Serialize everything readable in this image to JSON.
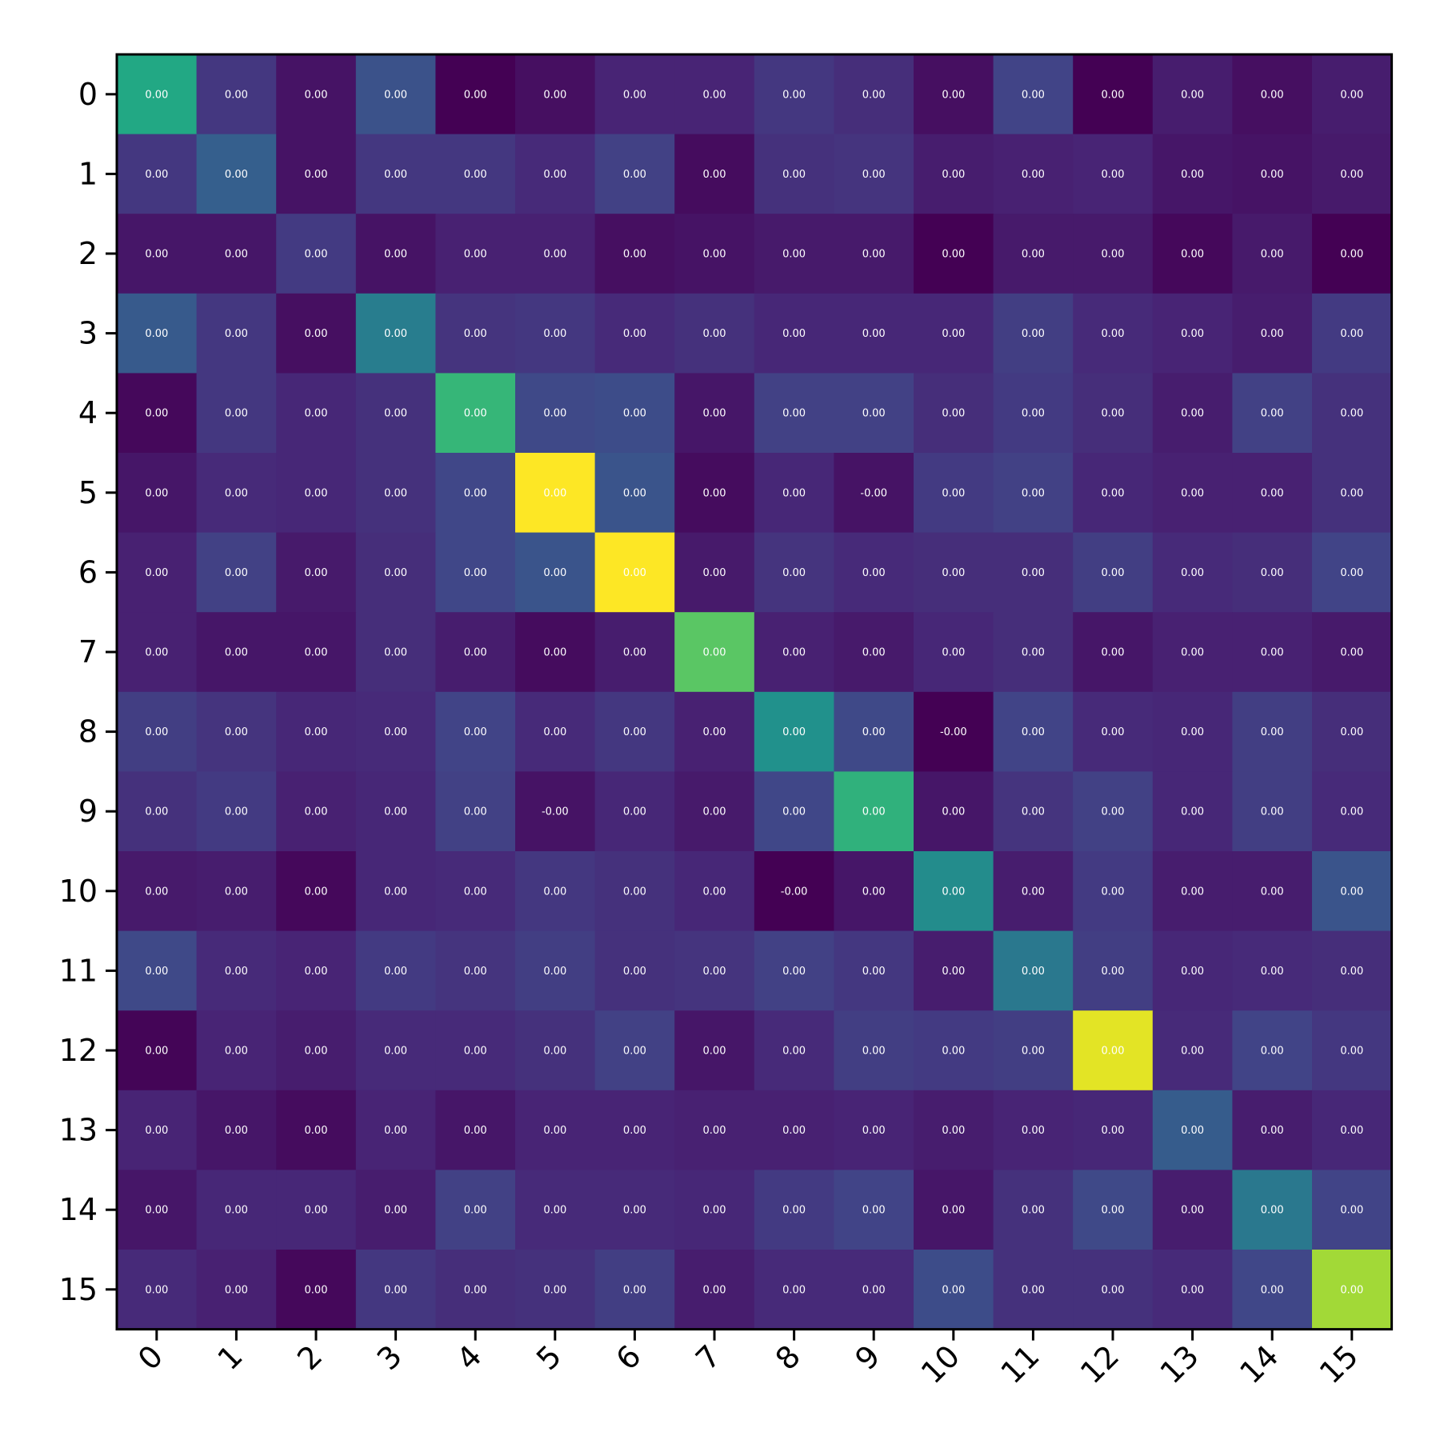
{
  "chart_data": {
    "type": "heatmap",
    "colormap": "viridis",
    "rows": [
      "0",
      "1",
      "2",
      "3",
      "4",
      "5",
      "6",
      "7",
      "8",
      "9",
      "10",
      "11",
      "12",
      "13",
      "14",
      "15"
    ],
    "columns": [
      "0",
      "1",
      "2",
      "3",
      "4",
      "5",
      "6",
      "7",
      "8",
      "9",
      "10",
      "11",
      "12",
      "13",
      "14",
      "15"
    ],
    "x_tick_rotation": 45,
    "cell_labels": [
      [
        "0.00",
        "0.00",
        "0.00",
        "0.00",
        "0.00",
        "0.00",
        "0.00",
        "0.00",
        "0.00",
        "0.00",
        "0.00",
        "0.00",
        "0.00",
        "0.00",
        "0.00",
        "0.00"
      ],
      [
        "0.00",
        "0.00",
        "0.00",
        "0.00",
        "0.00",
        "0.00",
        "0.00",
        "0.00",
        "0.00",
        "0.00",
        "0.00",
        "0.00",
        "0.00",
        "0.00",
        "0.00",
        "0.00"
      ],
      [
        "0.00",
        "0.00",
        "0.00",
        "0.00",
        "0.00",
        "0.00",
        "0.00",
        "0.00",
        "0.00",
        "0.00",
        "0.00",
        "0.00",
        "0.00",
        "0.00",
        "0.00",
        "0.00"
      ],
      [
        "0.00",
        "0.00",
        "0.00",
        "0.00",
        "0.00",
        "0.00",
        "0.00",
        "0.00",
        "0.00",
        "0.00",
        "0.00",
        "0.00",
        "0.00",
        "0.00",
        "0.00",
        "0.00"
      ],
      [
        "0.00",
        "0.00",
        "0.00",
        "0.00",
        "0.00",
        "0.00",
        "0.00",
        "0.00",
        "0.00",
        "0.00",
        "0.00",
        "0.00",
        "0.00",
        "0.00",
        "0.00",
        "0.00"
      ],
      [
        "0.00",
        "0.00",
        "0.00",
        "0.00",
        "0.00",
        "0.00",
        "0.00",
        "0.00",
        "0.00",
        "-0.00",
        "0.00",
        "0.00",
        "0.00",
        "0.00",
        "0.00",
        "0.00"
      ],
      [
        "0.00",
        "0.00",
        "0.00",
        "0.00",
        "0.00",
        "0.00",
        "0.00",
        "0.00",
        "0.00",
        "0.00",
        "0.00",
        "0.00",
        "0.00",
        "0.00",
        "0.00",
        "0.00"
      ],
      [
        "0.00",
        "0.00",
        "0.00",
        "0.00",
        "0.00",
        "0.00",
        "0.00",
        "0.00",
        "0.00",
        "0.00",
        "0.00",
        "0.00",
        "0.00",
        "0.00",
        "0.00",
        "0.00"
      ],
      [
        "0.00",
        "0.00",
        "0.00",
        "0.00",
        "0.00",
        "0.00",
        "0.00",
        "0.00",
        "0.00",
        "0.00",
        "-0.00",
        "0.00",
        "0.00",
        "0.00",
        "0.00",
        "0.00"
      ],
      [
        "0.00",
        "0.00",
        "0.00",
        "0.00",
        "0.00",
        "-0.00",
        "0.00",
        "0.00",
        "0.00",
        "0.00",
        "0.00",
        "0.00",
        "0.00",
        "0.00",
        "0.00",
        "0.00"
      ],
      [
        "0.00",
        "0.00",
        "0.00",
        "0.00",
        "0.00",
        "0.00",
        "0.00",
        "0.00",
        "-0.00",
        "0.00",
        "0.00",
        "0.00",
        "0.00",
        "0.00",
        "0.00",
        "0.00"
      ],
      [
        "0.00",
        "0.00",
        "0.00",
        "0.00",
        "0.00",
        "0.00",
        "0.00",
        "0.00",
        "0.00",
        "0.00",
        "0.00",
        "0.00",
        "0.00",
        "0.00",
        "0.00",
        "0.00"
      ],
      [
        "0.00",
        "0.00",
        "0.00",
        "0.00",
        "0.00",
        "0.00",
        "0.00",
        "0.00",
        "0.00",
        "0.00",
        "0.00",
        "0.00",
        "0.00",
        "0.00",
        "0.00",
        "0.00"
      ],
      [
        "0.00",
        "0.00",
        "0.00",
        "0.00",
        "0.00",
        "0.00",
        "0.00",
        "0.00",
        "0.00",
        "0.00",
        "0.00",
        "0.00",
        "0.00",
        "0.00",
        "0.00",
        "0.00"
      ],
      [
        "0.00",
        "0.00",
        "0.00",
        "0.00",
        "0.00",
        "0.00",
        "0.00",
        "0.00",
        "0.00",
        "0.00",
        "0.00",
        "0.00",
        "0.00",
        "0.00",
        "0.00",
        "0.00"
      ],
      [
        "0.00",
        "0.00",
        "0.00",
        "0.00",
        "0.00",
        "0.00",
        "0.00",
        "0.00",
        "0.00",
        "0.00",
        "0.00",
        "0.00",
        "0.00",
        "0.00",
        "0.00",
        "0.00"
      ]
    ],
    "color_levels": [
      [
        0.6,
        0.16,
        0.05,
        0.25,
        0.0,
        0.04,
        0.1,
        0.1,
        0.16,
        0.13,
        0.04,
        0.2,
        0.0,
        0.08,
        0.04,
        0.08
      ],
      [
        0.16,
        0.3,
        0.05,
        0.16,
        0.16,
        0.12,
        0.19,
        0.03,
        0.14,
        0.15,
        0.08,
        0.09,
        0.1,
        0.06,
        0.05,
        0.07
      ],
      [
        0.06,
        0.06,
        0.17,
        0.05,
        0.09,
        0.09,
        0.04,
        0.05,
        0.07,
        0.07,
        0.0,
        0.07,
        0.07,
        0.02,
        0.07,
        0.0
      ],
      [
        0.28,
        0.16,
        0.04,
        0.42,
        0.15,
        0.16,
        0.12,
        0.14,
        0.11,
        0.11,
        0.11,
        0.18,
        0.12,
        0.1,
        0.08,
        0.17
      ],
      [
        0.02,
        0.16,
        0.11,
        0.14,
        0.66,
        0.22,
        0.23,
        0.06,
        0.19,
        0.19,
        0.13,
        0.17,
        0.13,
        0.08,
        0.19,
        0.14
      ],
      [
        0.06,
        0.12,
        0.11,
        0.14,
        0.21,
        1.0,
        0.26,
        0.03,
        0.11,
        0.05,
        0.17,
        0.19,
        0.11,
        0.09,
        0.09,
        0.14
      ],
      [
        0.09,
        0.19,
        0.07,
        0.13,
        0.21,
        0.26,
        1.0,
        0.07,
        0.15,
        0.12,
        0.13,
        0.13,
        0.18,
        0.12,
        0.13,
        0.2
      ],
      [
        0.09,
        0.06,
        0.06,
        0.13,
        0.08,
        0.03,
        0.08,
        0.74,
        0.09,
        0.07,
        0.11,
        0.13,
        0.06,
        0.09,
        0.09,
        0.07
      ],
      [
        0.18,
        0.15,
        0.11,
        0.12,
        0.2,
        0.12,
        0.16,
        0.09,
        0.5,
        0.22,
        0.0,
        0.2,
        0.12,
        0.11,
        0.18,
        0.13
      ],
      [
        0.14,
        0.17,
        0.09,
        0.11,
        0.19,
        0.05,
        0.11,
        0.07,
        0.21,
        0.64,
        0.06,
        0.15,
        0.19,
        0.11,
        0.18,
        0.12
      ],
      [
        0.07,
        0.08,
        0.02,
        0.11,
        0.12,
        0.16,
        0.14,
        0.11,
        0.0,
        0.06,
        0.48,
        0.08,
        0.17,
        0.08,
        0.08,
        0.26
      ],
      [
        0.22,
        0.12,
        0.1,
        0.17,
        0.15,
        0.18,
        0.14,
        0.15,
        0.19,
        0.16,
        0.08,
        0.4,
        0.18,
        0.11,
        0.12,
        0.13
      ],
      [
        0.01,
        0.1,
        0.08,
        0.12,
        0.12,
        0.14,
        0.19,
        0.06,
        0.12,
        0.18,
        0.17,
        0.18,
        0.96,
        0.12,
        0.2,
        0.16
      ],
      [
        0.1,
        0.06,
        0.03,
        0.1,
        0.06,
        0.1,
        0.1,
        0.09,
        0.09,
        0.1,
        0.08,
        0.1,
        0.11,
        0.29,
        0.08,
        0.11
      ],
      [
        0.06,
        0.11,
        0.11,
        0.08,
        0.19,
        0.12,
        0.12,
        0.11,
        0.17,
        0.2,
        0.06,
        0.14,
        0.22,
        0.08,
        0.4,
        0.2
      ],
      [
        0.12,
        0.09,
        0.02,
        0.16,
        0.13,
        0.14,
        0.18,
        0.08,
        0.12,
        0.12,
        0.23,
        0.14,
        0.14,
        0.12,
        0.21,
        0.86
      ]
    ]
  }
}
